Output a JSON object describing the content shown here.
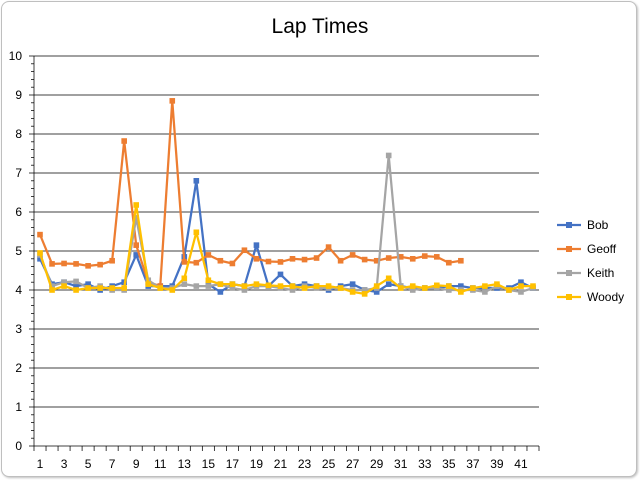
{
  "chart_data": {
    "type": "line",
    "title": "Lap Times",
    "xlabel": "",
    "ylabel": "",
    "ylim": [
      0,
      10
    ],
    "yticks": [
      "0",
      "1",
      "2",
      "3",
      "4",
      "5",
      "6",
      "7",
      "8",
      "9",
      "10"
    ],
    "x": [
      1,
      2,
      3,
      4,
      5,
      6,
      7,
      8,
      9,
      10,
      11,
      12,
      13,
      14,
      15,
      16,
      17,
      18,
      19,
      20,
      21,
      22,
      23,
      24,
      25,
      26,
      27,
      28,
      29,
      30,
      31,
      32,
      33,
      34,
      35,
      36,
      37,
      38,
      39,
      40,
      41,
      42
    ],
    "xticks": [
      "1",
      "3",
      "5",
      "7",
      "9",
      "11",
      "13",
      "15",
      "17",
      "19",
      "21",
      "23",
      "25",
      "27",
      "29",
      "31",
      "33",
      "35",
      "37",
      "39",
      "41"
    ],
    "grid": true,
    "legend_position": "right",
    "series": [
      {
        "name": "Bob",
        "color": "#4472C4",
        "marker": "square",
        "values": [
          4.8,
          4.15,
          4.2,
          4.1,
          4.15,
          4.0,
          4.1,
          4.2,
          4.9,
          4.1,
          4.1,
          4.1,
          4.85,
          6.8,
          4.15,
          3.95,
          4.15,
          4.1,
          5.15,
          4.1,
          4.4,
          4.1,
          4.15,
          4.1,
          4.0,
          4.1,
          4.15,
          4.0,
          3.95,
          4.15,
          4.1,
          4.05,
          4.05,
          4.05,
          4.1,
          4.1,
          4.05,
          4.05,
          4.05,
          4.05,
          4.2,
          4.05
        ]
      },
      {
        "name": "Geoff",
        "color": "#ED7D31",
        "marker": "square",
        "values": [
          5.42,
          4.67,
          4.68,
          4.67,
          4.62,
          4.65,
          4.75,
          7.82,
          5.15,
          4.2,
          4.1,
          8.85,
          4.72,
          4.7,
          4.9,
          4.75,
          4.68,
          5.02,
          4.8,
          4.73,
          4.72,
          4.8,
          4.78,
          4.82,
          5.1,
          4.75,
          4.9,
          4.78,
          4.75,
          4.82,
          4.85,
          4.8,
          4.87,
          4.85,
          4.7,
          4.75,
          null,
          null,
          null,
          null,
          null,
          null
        ]
      },
      {
        "name": "Keith",
        "color": "#A5A5A5",
        "marker": "square",
        "values": [
          4.9,
          4.1,
          4.2,
          4.22,
          4.05,
          4.1,
          4.0,
          4.0,
          5.85,
          4.25,
          4.05,
          4.05,
          4.15,
          4.1,
          4.1,
          4.15,
          4.05,
          4.0,
          4.1,
          4.1,
          4.05,
          4.0,
          4.1,
          4.05,
          4.05,
          4.05,
          4.0,
          4.0,
          4.05,
          7.45,
          4.1,
          4.0,
          4.05,
          4.05,
          4.0,
          4.0,
          4.0,
          3.95,
          4.1,
          4.0,
          3.95,
          4.05
        ]
      },
      {
        "name": "Woody",
        "color": "#FFC000",
        "marker": "square",
        "values": [
          4.95,
          4.0,
          4.1,
          4.0,
          4.05,
          4.05,
          4.05,
          4.05,
          6.18,
          4.15,
          4.05,
          4.0,
          4.3,
          5.48,
          4.25,
          4.15,
          4.15,
          4.1,
          4.15,
          4.12,
          4.1,
          4.1,
          4.05,
          4.1,
          4.1,
          4.05,
          3.95,
          3.9,
          4.1,
          4.3,
          4.05,
          4.1,
          4.05,
          4.12,
          4.1,
          3.95,
          4.05,
          4.1,
          4.15,
          4.0,
          4.1,
          4.1
        ]
      }
    ]
  }
}
